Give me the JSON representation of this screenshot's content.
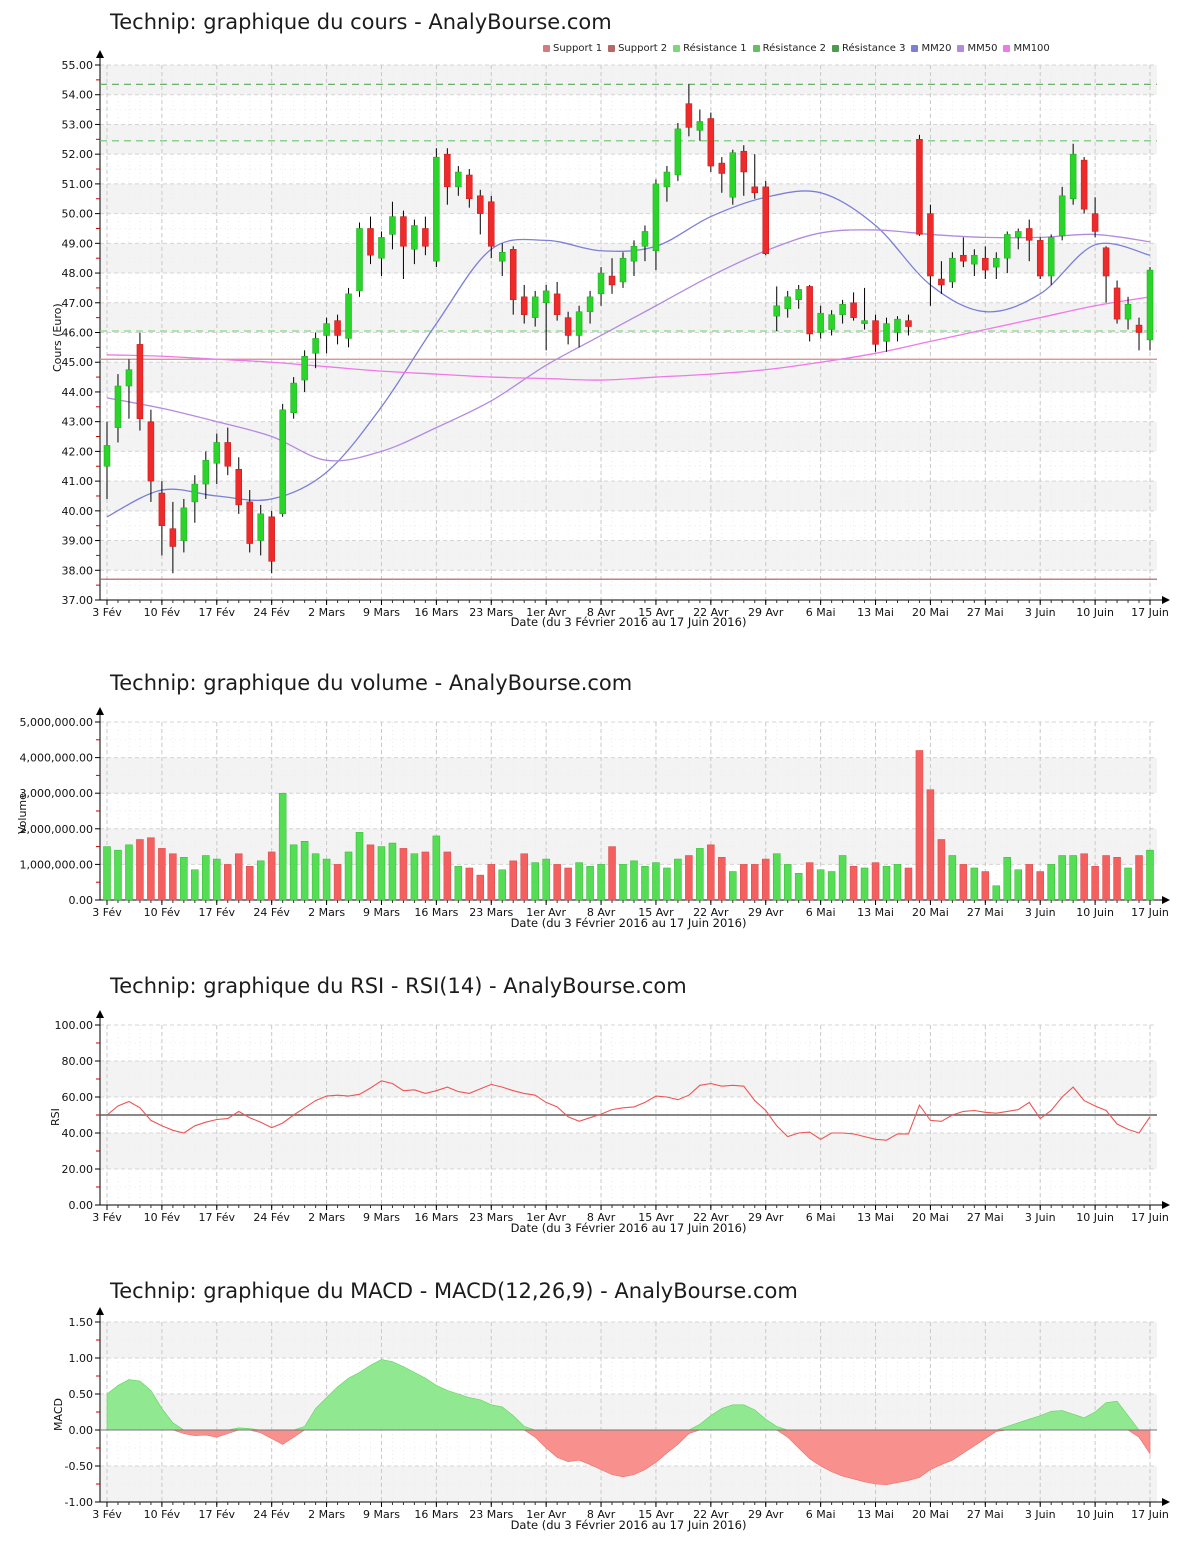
{
  "site": {
    "brand": "AnalyBourse.com",
    "instrument": "Technip"
  },
  "chart_data": [
    {
      "type": "candlestick",
      "title": "Technip: graphique du cours - AnalyBourse.com",
      "ylabel": "Cours (Euro)",
      "xlabel": "Date (du 3 Février 2016 au 17 Juin 2016)",
      "ylim": [
        37,
        55
      ],
      "ytick_step": 1,
      "yticks": [
        "37.00",
        "38.00",
        "39.00",
        "40.00",
        "41.00",
        "42.00",
        "43.00",
        "44.00",
        "45.00",
        "46.00",
        "47.00",
        "48.00",
        "49.00",
        "50.00",
        "51.00",
        "52.00",
        "53.00",
        "54.00",
        "55.00"
      ],
      "xticks": [
        "3 Fév",
        "10 Fév",
        "17 Fév",
        "24 Fév",
        "2 Mars",
        "9 Mars",
        "16 Mars",
        "23 Mars",
        "1er Avr",
        "8 Avr",
        "15 Avr",
        "22 Avr",
        "29 Avr",
        "6 Mai",
        "13 Mai",
        "20 Mai",
        "27 Mai",
        "3 Juin",
        "10 Juin",
        "17 Juin"
      ],
      "grid": true,
      "legend_position": "top-right",
      "legend": [
        {
          "label": "Support 1",
          "color": "#d47c7c"
        },
        {
          "label": "Support 2",
          "color": "#b46868"
        },
        {
          "label": "Résistance 1",
          "color": "#7ad87a"
        },
        {
          "label": "Résistance 2",
          "color": "#62c062"
        },
        {
          "label": "Résistance 3",
          "color": "#4e9a4e"
        },
        {
          "label": "MM20",
          "color": "#7b7fd8"
        },
        {
          "label": "MM50",
          "color": "#b28ae0"
        },
        {
          "label": "MM100",
          "color": "#f078e8"
        }
      ],
      "hlines": [
        {
          "label": "Résistance 3",
          "value": 54.35,
          "color": "#5aa85a",
          "dashed": true
        },
        {
          "label": "Résistance 2",
          "value": 52.45,
          "color": "#6cc46c",
          "dashed": true
        },
        {
          "label": "Résistance 1",
          "value": 46.05,
          "color": "#84d884",
          "dashed": true
        },
        {
          "label": "Support 1",
          "value": 45.1,
          "color": "#d08888",
          "dashed": false
        },
        {
          "label": "Support 2",
          "value": 37.7,
          "color": "#a85858",
          "dashed": false
        }
      ],
      "up_color": "#2bd42b",
      "down_color": "#ee2a2a",
      "candles_format": [
        "open",
        "high",
        "low",
        "close"
      ],
      "candles": [
        [
          41.5,
          43.0,
          40.4,
          42.2
        ],
        [
          42.8,
          44.6,
          42.3,
          44.2
        ],
        [
          44.2,
          45.1,
          43.1,
          44.75
        ],
        [
          45.6,
          46.0,
          42.7,
          43.1
        ],
        [
          43.0,
          43.4,
          40.3,
          41.0
        ],
        [
          40.6,
          41.0,
          38.5,
          39.5
        ],
        [
          39.4,
          40.3,
          37.9,
          38.8
        ],
        [
          39.0,
          40.4,
          38.6,
          40.1
        ],
        [
          40.3,
          41.2,
          39.6,
          40.9
        ],
        [
          40.9,
          42.0,
          40.4,
          41.7
        ],
        [
          41.6,
          42.6,
          40.9,
          42.3
        ],
        [
          42.3,
          42.8,
          41.2,
          41.5
        ],
        [
          41.4,
          41.8,
          39.9,
          40.2
        ],
        [
          40.3,
          40.7,
          38.6,
          38.9
        ],
        [
          39.0,
          40.2,
          38.5,
          39.9
        ],
        [
          39.8,
          40.0,
          37.9,
          38.3
        ],
        [
          39.9,
          43.6,
          39.8,
          43.4
        ],
        [
          43.3,
          44.5,
          43.1,
          44.3
        ],
        [
          44.4,
          45.4,
          44.0,
          45.2
        ],
        [
          45.3,
          46.0,
          44.8,
          45.8
        ],
        [
          45.9,
          46.5,
          45.3,
          46.3
        ],
        [
          46.4,
          46.6,
          45.6,
          45.9
        ],
        [
          45.8,
          47.5,
          45.5,
          47.3
        ],
        [
          47.4,
          49.7,
          47.2,
          49.5
        ],
        [
          49.5,
          49.9,
          48.3,
          48.6
        ],
        [
          48.5,
          49.4,
          47.9,
          49.2
        ],
        [
          49.3,
          50.4,
          48.8,
          49.9
        ],
        [
          49.9,
          50.1,
          47.8,
          48.9
        ],
        [
          48.8,
          49.8,
          48.3,
          49.6
        ],
        [
          49.5,
          49.9,
          48.6,
          48.9
        ],
        [
          48.4,
          52.2,
          48.2,
          51.9
        ],
        [
          52.0,
          52.2,
          50.3,
          50.9
        ],
        [
          50.9,
          51.6,
          50.6,
          51.4
        ],
        [
          51.3,
          51.5,
          50.2,
          50.5
        ],
        [
          50.6,
          50.8,
          49.3,
          50.0
        ],
        [
          50.4,
          50.6,
          48.5,
          48.9
        ],
        [
          48.4,
          49.0,
          47.9,
          48.7
        ],
        [
          48.8,
          48.9,
          46.6,
          47.1
        ],
        [
          47.2,
          47.6,
          46.3,
          46.6
        ],
        [
          46.5,
          47.4,
          46.2,
          47.2
        ],
        [
          47.0,
          47.6,
          45.4,
          47.4
        ],
        [
          47.3,
          47.7,
          46.4,
          46.6
        ],
        [
          46.5,
          46.7,
          45.6,
          45.9
        ],
        [
          45.9,
          46.9,
          45.5,
          46.7
        ],
        [
          46.7,
          47.4,
          46.3,
          47.2
        ],
        [
          47.3,
          48.2,
          46.9,
          48.0
        ],
        [
          47.9,
          48.5,
          47.3,
          47.6
        ],
        [
          47.7,
          48.7,
          47.5,
          48.5
        ],
        [
          48.4,
          49.1,
          47.9,
          48.9
        ],
        [
          48.9,
          49.6,
          48.4,
          49.4
        ],
        [
          48.75,
          51.15,
          48.1,
          51.0
        ],
        [
          50.9,
          51.6,
          50.4,
          51.4
        ],
        [
          51.3,
          53.05,
          51.1,
          52.85
        ],
        [
          53.7,
          54.35,
          52.6,
          52.9
        ],
        [
          52.8,
          53.5,
          52.45,
          53.1
        ],
        [
          53.2,
          53.4,
          51.4,
          51.6
        ],
        [
          51.7,
          51.9,
          50.7,
          51.35
        ],
        [
          50.55,
          52.15,
          50.3,
          52.05
        ],
        [
          52.1,
          52.3,
          50.6,
          51.4
        ],
        [
          50.9,
          52.0,
          50.5,
          50.7
        ],
        [
          50.9,
          51.1,
          48.6,
          48.65
        ],
        [
          46.55,
          47.55,
          46.05,
          46.9
        ],
        [
          46.8,
          47.4,
          46.5,
          47.2
        ],
        [
          47.1,
          47.6,
          46.8,
          47.45
        ],
        [
          47.55,
          47.6,
          45.7,
          45.95
        ],
        [
          46.0,
          46.9,
          45.8,
          46.65
        ],
        [
          46.1,
          46.75,
          45.9,
          46.6
        ],
        [
          46.6,
          47.1,
          46.3,
          46.95
        ],
        [
          47.0,
          47.35,
          46.4,
          46.5
        ],
        [
          46.3,
          47.5,
          46.1,
          46.4
        ],
        [
          46.4,
          46.6,
          45.35,
          45.6
        ],
        [
          45.7,
          46.5,
          45.35,
          46.3
        ],
        [
          46.0,
          46.55,
          45.7,
          46.45
        ],
        [
          46.4,
          46.6,
          45.9,
          46.2
        ],
        [
          52.5,
          52.65,
          49.25,
          49.3
        ],
        [
          50.0,
          50.3,
          46.9,
          47.9
        ],
        [
          47.8,
          48.4,
          47.3,
          47.6
        ],
        [
          47.7,
          48.7,
          47.5,
          48.5
        ],
        [
          48.6,
          49.2,
          48.2,
          48.4
        ],
        [
          48.3,
          48.8,
          47.9,
          48.6
        ],
        [
          48.5,
          48.9,
          47.8,
          48.1
        ],
        [
          48.2,
          48.7,
          47.8,
          48.5
        ],
        [
          48.5,
          49.4,
          48.0,
          49.3
        ],
        [
          49.2,
          49.5,
          48.8,
          49.4
        ],
        [
          49.5,
          49.8,
          48.4,
          49.1
        ],
        [
          49.1,
          49.2,
          47.8,
          47.9
        ],
        [
          47.9,
          49.3,
          47.6,
          49.2
        ],
        [
          49.25,
          50.9,
          49.1,
          50.6
        ],
        [
          50.5,
          52.35,
          50.3,
          52.0
        ],
        [
          51.8,
          51.9,
          50.0,
          50.15
        ],
        [
          50.0,
          50.55,
          49.2,
          49.4
        ],
        [
          48.85,
          48.9,
          47.0,
          47.9
        ],
        [
          47.5,
          47.75,
          46.3,
          46.45
        ],
        [
          46.45,
          47.2,
          46.1,
          46.95
        ],
        [
          46.25,
          46.5,
          45.4,
          46.0
        ],
        [
          45.75,
          48.2,
          45.4,
          48.1
        ]
      ],
      "moving_averages_sample_step": 5,
      "moving_averages": [
        {
          "name": "MM20",
          "color": "#7b7fd8",
          "values": [
            39.8,
            40.7,
            40.5,
            40.4,
            41.3,
            43.5,
            46.3,
            48.8,
            49.1,
            48.75,
            48.9,
            49.9,
            50.55,
            50.7,
            49.6,
            47.6,
            46.7,
            47.3,
            48.95,
            48.6
          ]
        },
        {
          "name": "MM50",
          "color": "#b28ae0",
          "values": [
            43.8,
            43.45,
            43.0,
            42.5,
            41.7,
            42.0,
            42.8,
            43.7,
            44.9,
            45.9,
            46.9,
            47.9,
            48.75,
            49.35,
            49.45,
            49.3,
            49.2,
            49.2,
            49.3,
            49.05
          ]
        },
        {
          "name": "MM100",
          "color": "#f078e8",
          "values": [
            45.25,
            45.2,
            45.1,
            45.0,
            44.85,
            44.7,
            44.6,
            44.5,
            44.45,
            44.4,
            44.5,
            44.6,
            44.75,
            45.0,
            45.3,
            45.7,
            46.1,
            46.5,
            46.9,
            47.2
          ]
        }
      ]
    },
    {
      "type": "bar",
      "title": "Technip: graphique du volume - AnalyBourse.com",
      "ylabel": "Volume",
      "xlabel": "Date (du 3 Février 2016 au 17 Juin 2016)",
      "ylim": [
        0,
        5000000
      ],
      "ytick_step": 1000000,
      "yticks": [
        "0.00",
        "1,000,000.00",
        "2,000,000.00",
        "3,000,000.00",
        "4,000,000.00",
        "5,000,000.00"
      ],
      "xticks": [
        "3 Fév",
        "10 Fév",
        "17 Fév",
        "24 Fév",
        "2 Mars",
        "9 Mars",
        "16 Mars",
        "23 Mars",
        "1er Avr",
        "8 Avr",
        "15 Avr",
        "22 Avr",
        "29 Avr",
        "6 Mai",
        "13 Mai",
        "20 Mai",
        "27 Mai",
        "3 Juin",
        "10 Juin",
        "17 Juin"
      ],
      "up_color": "#55dd55",
      "down_color": "#f46060",
      "values": [
        1500000,
        1400000,
        1550000,
        1700000,
        1750000,
        1450000,
        1300000,
        1200000,
        850000,
        1250000,
        1150000,
        1000000,
        1300000,
        950000,
        1100000,
        1350000,
        3000000,
        1550000,
        1650000,
        1300000,
        1150000,
        1000000,
        1350000,
        1900000,
        1550000,
        1500000,
        1600000,
        1450000,
        1300000,
        1350000,
        1800000,
        1350000,
        950000,
        900000,
        700000,
        1000000,
        850000,
        1100000,
        1300000,
        1050000,
        1150000,
        1000000,
        900000,
        1050000,
        950000,
        1000000,
        1500000,
        1000000,
        1100000,
        950000,
        1050000,
        900000,
        1150000,
        1250000,
        1450000,
        1550000,
        1200000,
        800000,
        1000000,
        1000000,
        1150000,
        1300000,
        1000000,
        750000,
        1050000,
        850000,
        800000,
        1250000,
        950000,
        900000,
        1050000,
        950000,
        1000000,
        900000,
        4200000,
        3100000,
        1700000,
        1250000,
        1000000,
        900000,
        800000,
        400000,
        1200000,
        850000,
        1000000,
        800000,
        1000000,
        1250000,
        1250000,
        1300000,
        950000,
        1250000,
        1200000,
        900000,
        1250000,
        1400000
      ]
    },
    {
      "type": "line",
      "title": "Technip: graphique du RSI - RSI(14) - AnalyBourse.com",
      "ylabel": "RSI",
      "xlabel": "Date (du 3 Février 2016 au 17 Juin 2016)",
      "ylim": [
        0,
        100
      ],
      "ytick_step": 20,
      "yticks": [
        "0.00",
        "20.00",
        "40.00",
        "60.00",
        "80.00",
        "100.00"
      ],
      "xticks": [
        "3 Fév",
        "10 Fév",
        "17 Fév",
        "24 Fév",
        "2 Mars",
        "9 Mars",
        "16 Mars",
        "23 Mars",
        "1er Avr",
        "8 Avr",
        "15 Avr",
        "22 Avr",
        "29 Avr",
        "6 Mai",
        "13 Mai",
        "20 Mai",
        "27 Mai",
        "3 Juin",
        "10 Juin",
        "17 Juin"
      ],
      "line_color": "#ee5555",
      "hline": {
        "value": 50,
        "color": "#606060"
      },
      "values": [
        50,
        55,
        57.5,
        54,
        47,
        44,
        41.5,
        40,
        44,
        46,
        47.5,
        48,
        52,
        48.5,
        46,
        43,
        45.5,
        50,
        54,
        58,
        60.5,
        61,
        60.5,
        61.5,
        65,
        69,
        67.5,
        63.5,
        64,
        62,
        63.5,
        65.5,
        63,
        62,
        64.5,
        67,
        65.5,
        63.5,
        62,
        61,
        57,
        54.5,
        49,
        46.5,
        48.5,
        50.5,
        53,
        54,
        54.5,
        57,
        60.5,
        60,
        58.5,
        61,
        66.5,
        67.5,
        66,
        66.5,
        66,
        58,
        52.5,
        44,
        38,
        40,
        40.5,
        36.5,
        40,
        40,
        39.5,
        38,
        36.5,
        36,
        39.5,
        39.5,
        55.5,
        47,
        46.5,
        50,
        52,
        52.5,
        51.5,
        51,
        52,
        53,
        57,
        48,
        52.5,
        60,
        65.5,
        58,
        55,
        52.5,
        45,
        42,
        40,
        49
      ]
    },
    {
      "type": "area",
      "title": "Technip: graphique du MACD - MACD(12,26,9) - AnalyBourse.com",
      "ylabel": "MACD",
      "xlabel": "Date (du 3 Février 2016 au 17 Juin 2016)",
      "ylim": [
        -1.0,
        1.5
      ],
      "ytick_step": 0.5,
      "yticks": [
        "-1.00",
        "-0.50",
        "0.00",
        "0.50",
        "1.00",
        "1.50"
      ],
      "xticks": [
        "3 Fév",
        "10 Fév",
        "17 Fév",
        "24 Fév",
        "2 Mars",
        "9 Mars",
        "16 Mars",
        "23 Mars",
        "1er Avr",
        "8 Avr",
        "15 Avr",
        "22 Avr",
        "29 Avr",
        "6 Mai",
        "13 Mai",
        "20 Mai",
        "27 Mai",
        "3 Juin",
        "10 Juin",
        "17 Juin"
      ],
      "pos_color": "#90e890",
      "neg_color": "#f8918d",
      "values": [
        0.5,
        0.62,
        0.7,
        0.68,
        0.55,
        0.3,
        0.1,
        -0.05,
        -0.08,
        -0.07,
        -0.1,
        -0.05,
        0.03,
        0.02,
        -0.04,
        -0.12,
        -0.2,
        -0.1,
        0.05,
        0.3,
        0.45,
        0.6,
        0.72,
        0.8,
        0.9,
        0.98,
        0.95,
        0.88,
        0.8,
        0.72,
        0.62,
        0.55,
        0.5,
        0.45,
        0.42,
        0.35,
        0.32,
        0.2,
        0.05,
        -0.1,
        -0.25,
        -0.38,
        -0.44,
        -0.42,
        -0.48,
        -0.55,
        -0.62,
        -0.65,
        -0.62,
        -0.55,
        -0.45,
        -0.32,
        -0.2,
        -0.05,
        0.08,
        0.2,
        0.3,
        0.35,
        0.35,
        0.28,
        0.15,
        0.05,
        -0.1,
        -0.25,
        -0.4,
        -0.5,
        -0.58,
        -0.64,
        -0.68,
        -0.72,
        -0.75,
        -0.76,
        -0.73,
        -0.7,
        -0.66,
        -0.55,
        -0.48,
        -0.42,
        -0.32,
        -0.22,
        -0.12,
        -0.02,
        0.05,
        0.1,
        0.15,
        0.2,
        0.26,
        0.27,
        0.22,
        0.17,
        0.25,
        0.38,
        0.4,
        0.2,
        -0.1,
        -0.33
      ]
    }
  ]
}
